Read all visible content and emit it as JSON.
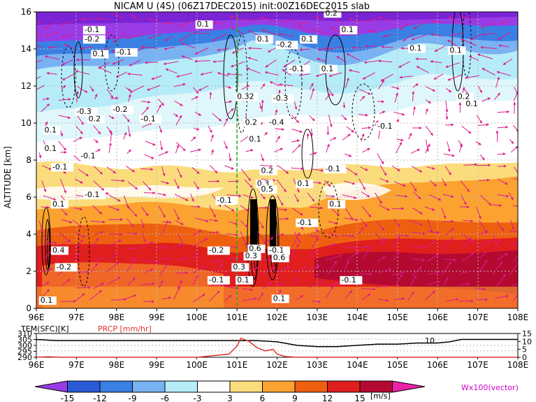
{
  "title": "NICAM  U  (4S)  (06Z17DEC2015)  init:00Z16DEC2015  slab",
  "chart_data": [
    {
      "type": "heatmap",
      "title": "NICAM  U  (4S)  (06Z17DEC2015)  init:00Z16DEC2015  slab",
      "xlabel": "",
      "ylabel": "ALTITUDE [km]",
      "x_ticks": [
        "96E",
        "97E",
        "98E",
        "99E",
        "100E",
        "101E",
        "102E",
        "103E",
        "104E",
        "105E",
        "106E",
        "107E",
        "108E"
      ],
      "y_ticks": [
        "0",
        "2",
        "4",
        "6",
        "8",
        "10",
        "12",
        "14",
        "16"
      ],
      "xlim": [
        96,
        108
      ],
      "ylim": [
        0,
        16
      ],
      "vertical_marker_lon": 101,
      "contour_labels": [
        {
          "text": "0.1",
          "lon": 96.1,
          "alt": 0.3
        },
        {
          "text": "-0.2",
          "lon": 96.5,
          "alt": 2.1
        },
        {
          "text": "0.4",
          "lon": 96.4,
          "alt": 3.0
        },
        {
          "text": "-0.1",
          "lon": 97.2,
          "alt": 6.0
        },
        {
          "text": "0.1",
          "lon": 96.4,
          "alt": 5.5
        },
        {
          "text": "-0.1",
          "lon": 96.4,
          "alt": 7.5
        },
        {
          "text": "0.1",
          "lon": 96.2,
          "alt": 8.5
        },
        {
          "text": "0.1",
          "lon": 96.2,
          "alt": 9.5
        },
        {
          "text": "-0.1",
          "lon": 97.1,
          "alt": 8.1
        },
        {
          "text": "0.2",
          "lon": 97.3,
          "alt": 10.1
        },
        {
          "text": "-0.3",
          "lon": 97.0,
          "alt": 10.5
        },
        {
          "text": "-0.2",
          "lon": 97.9,
          "alt": 10.6
        },
        {
          "text": "-0.1",
          "lon": 97.2,
          "alt": 14.9
        },
        {
          "text": "-0.2",
          "lon": 97.2,
          "alt": 14.4
        },
        {
          "text": "0.1",
          "lon": 97.4,
          "alt": 13.6
        },
        {
          "text": "-0.1",
          "lon": 98.0,
          "alt": 13.7
        },
        {
          "text": "0.1",
          "lon": 100.0,
          "alt": 15.2
        },
        {
          "text": "0.1",
          "lon": 101.5,
          "alt": 14.4
        },
        {
          "text": "-0.2",
          "lon": 102.0,
          "alt": 14.1
        },
        {
          "text": "0.1",
          "lon": 102.6,
          "alt": 14.4
        },
        {
          "text": "-0.1",
          "lon": 102.3,
          "alt": 12.8
        },
        {
          "text": "0.2",
          "lon": 103.2,
          "alt": 15.8
        },
        {
          "text": "0.1",
          "lon": 103.6,
          "alt": 14.9
        },
        {
          "text": "0.1",
          "lon": 103.1,
          "alt": 12.8
        },
        {
          "text": "0.1",
          "lon": 105.3,
          "alt": 13.9
        },
        {
          "text": "0.1",
          "lon": 106.3,
          "alt": 13.8
        },
        {
          "text": "0.32",
          "lon": 101.0,
          "alt": 11.3
        },
        {
          "text": "-0.3",
          "lon": 101.9,
          "alt": 11.2
        },
        {
          "text": "0.2",
          "lon": 106.5,
          "alt": 11.3
        },
        {
          "text": "0.1",
          "lon": 106.7,
          "alt": 10.9
        },
        {
          "text": "-0.1",
          "lon": 98.6,
          "alt": 10.1
        },
        {
          "text": "-0.1",
          "lon": 104.5,
          "alt": 9.7
        },
        {
          "text": "0.2",
          "lon": 101.2,
          "alt": 9.9
        },
        {
          "text": "-0.4",
          "lon": 101.8,
          "alt": 9.9
        },
        {
          "text": "0.1",
          "lon": 101.3,
          "alt": 9.0
        },
        {
          "text": "0.2",
          "lon": 101.6,
          "alt": 7.3
        },
        {
          "text": "-0.1",
          "lon": 103.2,
          "alt": 7.4
        },
        {
          "text": "0.3",
          "lon": 101.5,
          "alt": 6.6
        },
        {
          "text": "0.5",
          "lon": 101.6,
          "alt": 6.3
        },
        {
          "text": "0.1",
          "lon": 102.5,
          "alt": 6.6
        },
        {
          "text": "-0.1",
          "lon": 100.5,
          "alt": 5.7
        },
        {
          "text": "0.1",
          "lon": 103.3,
          "alt": 5.5
        },
        {
          "text": "-0.1",
          "lon": 102.5,
          "alt": 4.5
        },
        {
          "text": "-0.2",
          "lon": 100.3,
          "alt": 3.0
        },
        {
          "text": "0.6",
          "lon": 101.3,
          "alt": 3.1
        },
        {
          "text": "-0.1",
          "lon": 101.8,
          "alt": 3.0
        },
        {
          "text": "0.3",
          "lon": 101.2,
          "alt": 2.7
        },
        {
          "text": "0.6",
          "lon": 101.9,
          "alt": 2.6
        },
        {
          "text": "0.3",
          "lon": 100.9,
          "alt": 2.1
        },
        {
          "text": "-0.1",
          "lon": 100.3,
          "alt": 1.4
        },
        {
          "text": "0.1",
          "lon": 101.0,
          "alt": 1.4
        },
        {
          "text": "-0.1",
          "lon": 103.6,
          "alt": 1.4
        },
        {
          "text": "0.1",
          "lon": 101.9,
          "alt": 0.4
        }
      ]
    },
    {
      "type": "line",
      "series": [
        {
          "name": "TEM(SFC)[K]",
          "color": "#000000",
          "x": [
            96.0,
            96.5,
            97.0,
            98.0,
            99.0,
            100.0,
            101.0,
            101.5,
            102.0,
            102.5,
            103.0,
            103.5,
            104.0,
            104.5,
            105.0,
            105.5,
            106.0,
            106.3,
            106.6,
            107.0,
            108.0
          ],
          "values": [
            305,
            304,
            304,
            304,
            304,
            304,
            304,
            304,
            303,
            300,
            299,
            299,
            300,
            301,
            301,
            302,
            302,
            303,
            305,
            305,
            305
          ]
        },
        {
          "name": "PRCP [mm/hr]",
          "color": "#e03030",
          "x": [
            96.0,
            96.3,
            96.6,
            97.0,
            100.0,
            100.8,
            101.0,
            101.1,
            101.3,
            101.5,
            101.7,
            101.9,
            102.0,
            102.2,
            102.5,
            103.0,
            108.0
          ],
          "values": [
            0,
            0.3,
            0,
            0,
            0,
            2,
            7,
            12,
            10,
            6,
            4,
            5,
            2,
            0.5,
            0,
            0,
            0
          ]
        }
      ],
      "left_ticks": [
        "290",
        "295",
        "300",
        "305",
        "310"
      ],
      "left_ylim": [
        290,
        310
      ],
      "right_ticks": [
        "0",
        "5",
        "10",
        "15"
      ],
      "right_ylim": [
        0,
        15
      ],
      "x_ticks": [
        "96E",
        "97E",
        "98E",
        "99E",
        "100E",
        "101E",
        "102E",
        "103E",
        "104E",
        "105E",
        "106E",
        "107E",
        "108E"
      ],
      "annotation": "10"
    }
  ],
  "colorbar": {
    "ticks": [
      "-15",
      "-12",
      "-9",
      "-6",
      "-3",
      "3",
      "6",
      "9",
      "12",
      "15"
    ],
    "unit": "[m/s]",
    "colors": [
      "#9a3ce6",
      "#2a5ad6",
      "#3a7fe4",
      "#78b2f2",
      "#b6ecf8",
      "#ffffff",
      "#fbdc7c",
      "#fba230",
      "#ee6010",
      "#e01e1e",
      "#b40a32",
      "#ee22a8"
    ]
  },
  "vector_label": "Wx100(vector)"
}
